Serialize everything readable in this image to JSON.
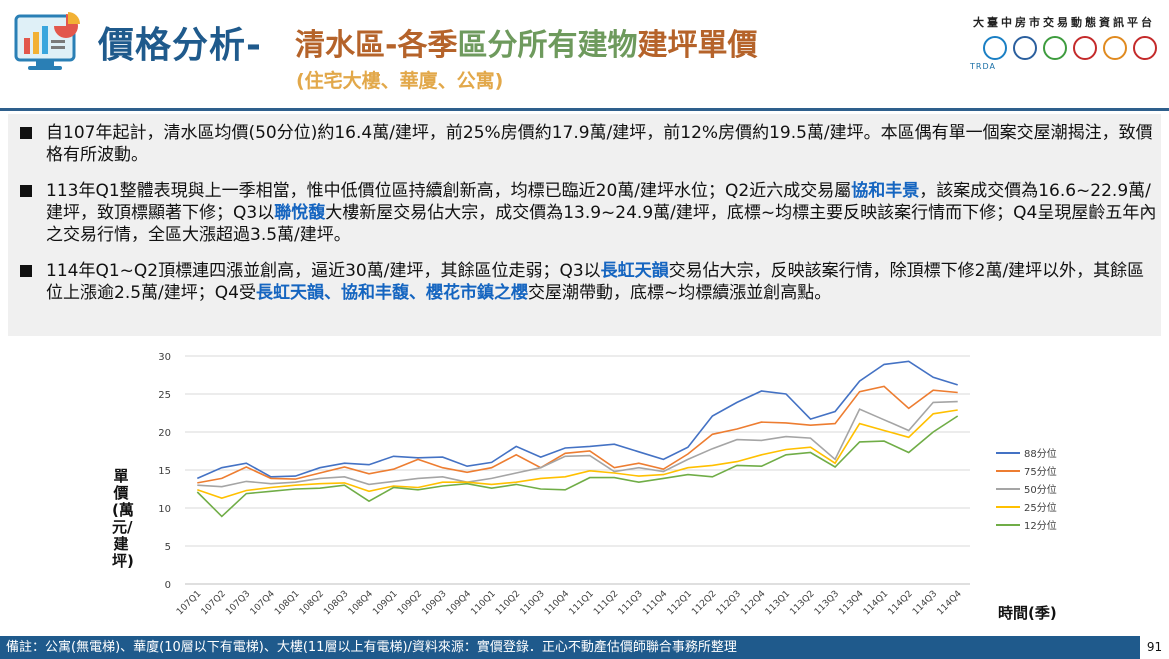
{
  "header": {
    "title_main": "價格分析-",
    "title_sub_1": "清水區-各季",
    "title_sub_2": "區分所有建物",
    "title_sub_3": "建坪單價",
    "title_note": "(住宅大樓、華廈、公寓)",
    "platform": "大臺中房市交易動態資訊平台",
    "logo_caption": "TRDA"
  },
  "bullets": [
    {
      "segments": [
        {
          "text": "自107年起計，清水區均價(50分位)約16.4萬/建坪，前25%房價約17.9萬/建坪，前12%房價約19.5萬/建坪。本區偶有單一個案交屋潮揭注，致價格有所波動。",
          "hl": false
        }
      ]
    },
    {
      "segments": [
        {
          "text": "113年Q1整體表現與上一季相當，惟中低價位區持續創新高，均標已臨近20萬/建坪水位；Q2近六成交易屬",
          "hl": false
        },
        {
          "text": "協和丰景",
          "hl": true
        },
        {
          "text": "，該案成交價為16.6~22.9萬/建坪，致頂標顯著下修；Q3以",
          "hl": false
        },
        {
          "text": "聯悅馥",
          "hl": true
        },
        {
          "text": "大樓新屋交易佔大宗，成交價為13.9~24.9萬/建坪，底標~均標主要反映該案行情而下修；Q4呈現屋齡五年內之交易行情，全區大漲超過3.5萬/建坪。",
          "hl": false
        }
      ]
    },
    {
      "segments": [
        {
          "text": "114年Q1~Q2頂標連四漲並創高，逼近30萬/建坪，其餘區位走弱；Q3以",
          "hl": false
        },
        {
          "text": "長虹天韻",
          "hl": true
        },
        {
          "text": "交易佔大宗，反映該案行情，除頂標下修2萬/建坪以外，其餘區位上漲逾2.5萬/建坪；Q4受",
          "hl": false
        },
        {
          "text": "長虹天韻、協和丰馥、櫻花市鎮之櫻",
          "hl": true
        },
        {
          "text": "交屋潮帶動，底標~均標續漲並創高點。",
          "hl": false
        }
      ]
    }
  ],
  "chart_data": {
    "type": "line",
    "title": "",
    "xlabel": "時間(季)",
    "ylabel": "單價(萬元/建坪)",
    "ylim": [
      0,
      30
    ],
    "yticks": [
      0,
      5,
      10,
      15,
      20,
      25,
      30
    ],
    "legend_position": "right",
    "categories": [
      "107Q1",
      "107Q2",
      "107Q3",
      "107Q4",
      "108Q1",
      "108Q2",
      "108Q3",
      "108Q4",
      "109Q1",
      "109Q2",
      "109Q3",
      "109Q4",
      "110Q1",
      "110Q2",
      "110Q3",
      "110Q4",
      "111Q1",
      "111Q2",
      "111Q3",
      "111Q4",
      "112Q1",
      "112Q2",
      "112Q3",
      "112Q4",
      "113Q1",
      "113Q2",
      "113Q3",
      "113Q4",
      "114Q1",
      "114Q2",
      "114Q3",
      "114Q4"
    ],
    "series": [
      {
        "name": "88分位",
        "color": "#4472c4",
        "values": [
          13.9,
          15.3,
          15.9,
          14.1,
          14.2,
          15.3,
          15.9,
          15.7,
          16.8,
          16.6,
          16.7,
          15.5,
          16.0,
          18.1,
          16.7,
          17.9,
          18.1,
          18.4,
          17.4,
          16.4,
          18.0,
          22.1,
          23.9,
          25.4,
          25.0,
          21.7,
          22.7,
          26.7,
          28.9,
          29.3,
          27.2,
          26.2
        ]
      },
      {
        "name": "75分位",
        "color": "#ed7d31",
        "values": [
          13.3,
          13.9,
          15.4,
          13.9,
          13.8,
          14.6,
          15.4,
          14.5,
          15.1,
          16.4,
          15.3,
          14.7,
          15.3,
          17.0,
          15.3,
          17.2,
          17.5,
          15.3,
          15.9,
          15.1,
          17.1,
          19.7,
          20.4,
          21.3,
          21.2,
          20.9,
          21.1,
          25.3,
          26.0,
          23.1,
          25.5,
          25.2
        ]
      },
      {
        "name": "50分位",
        "color": "#a5a5a5",
        "values": [
          13.0,
          12.8,
          13.5,
          13.2,
          13.4,
          13.9,
          14.1,
          13.1,
          13.5,
          13.9,
          14.1,
          13.4,
          13.9,
          14.6,
          15.3,
          16.8,
          16.9,
          14.8,
          15.3,
          14.8,
          16.4,
          17.8,
          19.0,
          18.9,
          19.4,
          19.2,
          16.4,
          23.0,
          21.6,
          20.2,
          23.9,
          24.0
        ]
      },
      {
        "name": "25分位",
        "color": "#ffc000",
        "values": [
          12.4,
          11.3,
          12.3,
          12.7,
          13.0,
          13.2,
          13.3,
          12.2,
          12.9,
          12.7,
          13.4,
          13.4,
          13.1,
          13.4,
          13.9,
          14.1,
          14.9,
          14.6,
          14.2,
          14.4,
          15.3,
          15.6,
          16.1,
          17.0,
          17.7,
          18.0,
          15.9,
          21.1,
          20.2,
          19.3,
          22.4,
          22.9
        ]
      },
      {
        "name": "12分位",
        "color": "#70ad47",
        "values": [
          12.1,
          8.9,
          11.9,
          12.2,
          12.5,
          12.6,
          13.0,
          10.9,
          12.7,
          12.4,
          12.9,
          13.2,
          12.6,
          13.1,
          12.5,
          12.4,
          14.0,
          14.0,
          13.4,
          13.9,
          14.4,
          14.1,
          15.6,
          15.5,
          17.0,
          17.3,
          15.4,
          18.7,
          18.8,
          17.3,
          20.0,
          22.1
        ]
      }
    ]
  },
  "footer": {
    "note": "備註：公寓(無電梯)、華廈(10層以下有電梯)、大樓(11層以上有電梯)/資料來源：實價登錄．正心不動產估價師聯合事務所整理",
    "page": "91"
  }
}
